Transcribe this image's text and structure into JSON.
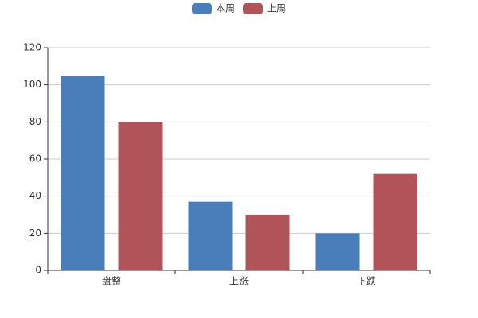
{
  "chart_data": {
    "type": "bar",
    "categories": [
      "盘整",
      "上涨",
      "下跌"
    ],
    "series": [
      {
        "name": "本周",
        "color": "#4a7ebb",
        "values": [
          105,
          37,
          20
        ]
      },
      {
        "name": "上周",
        "color": "#b0545a",
        "values": [
          80,
          30,
          52
        ]
      }
    ],
    "ylim": [
      0,
      120
    ],
    "yticks": [
      0,
      20,
      40,
      60,
      80,
      100,
      120
    ],
    "grid": true,
    "legend": "top"
  }
}
